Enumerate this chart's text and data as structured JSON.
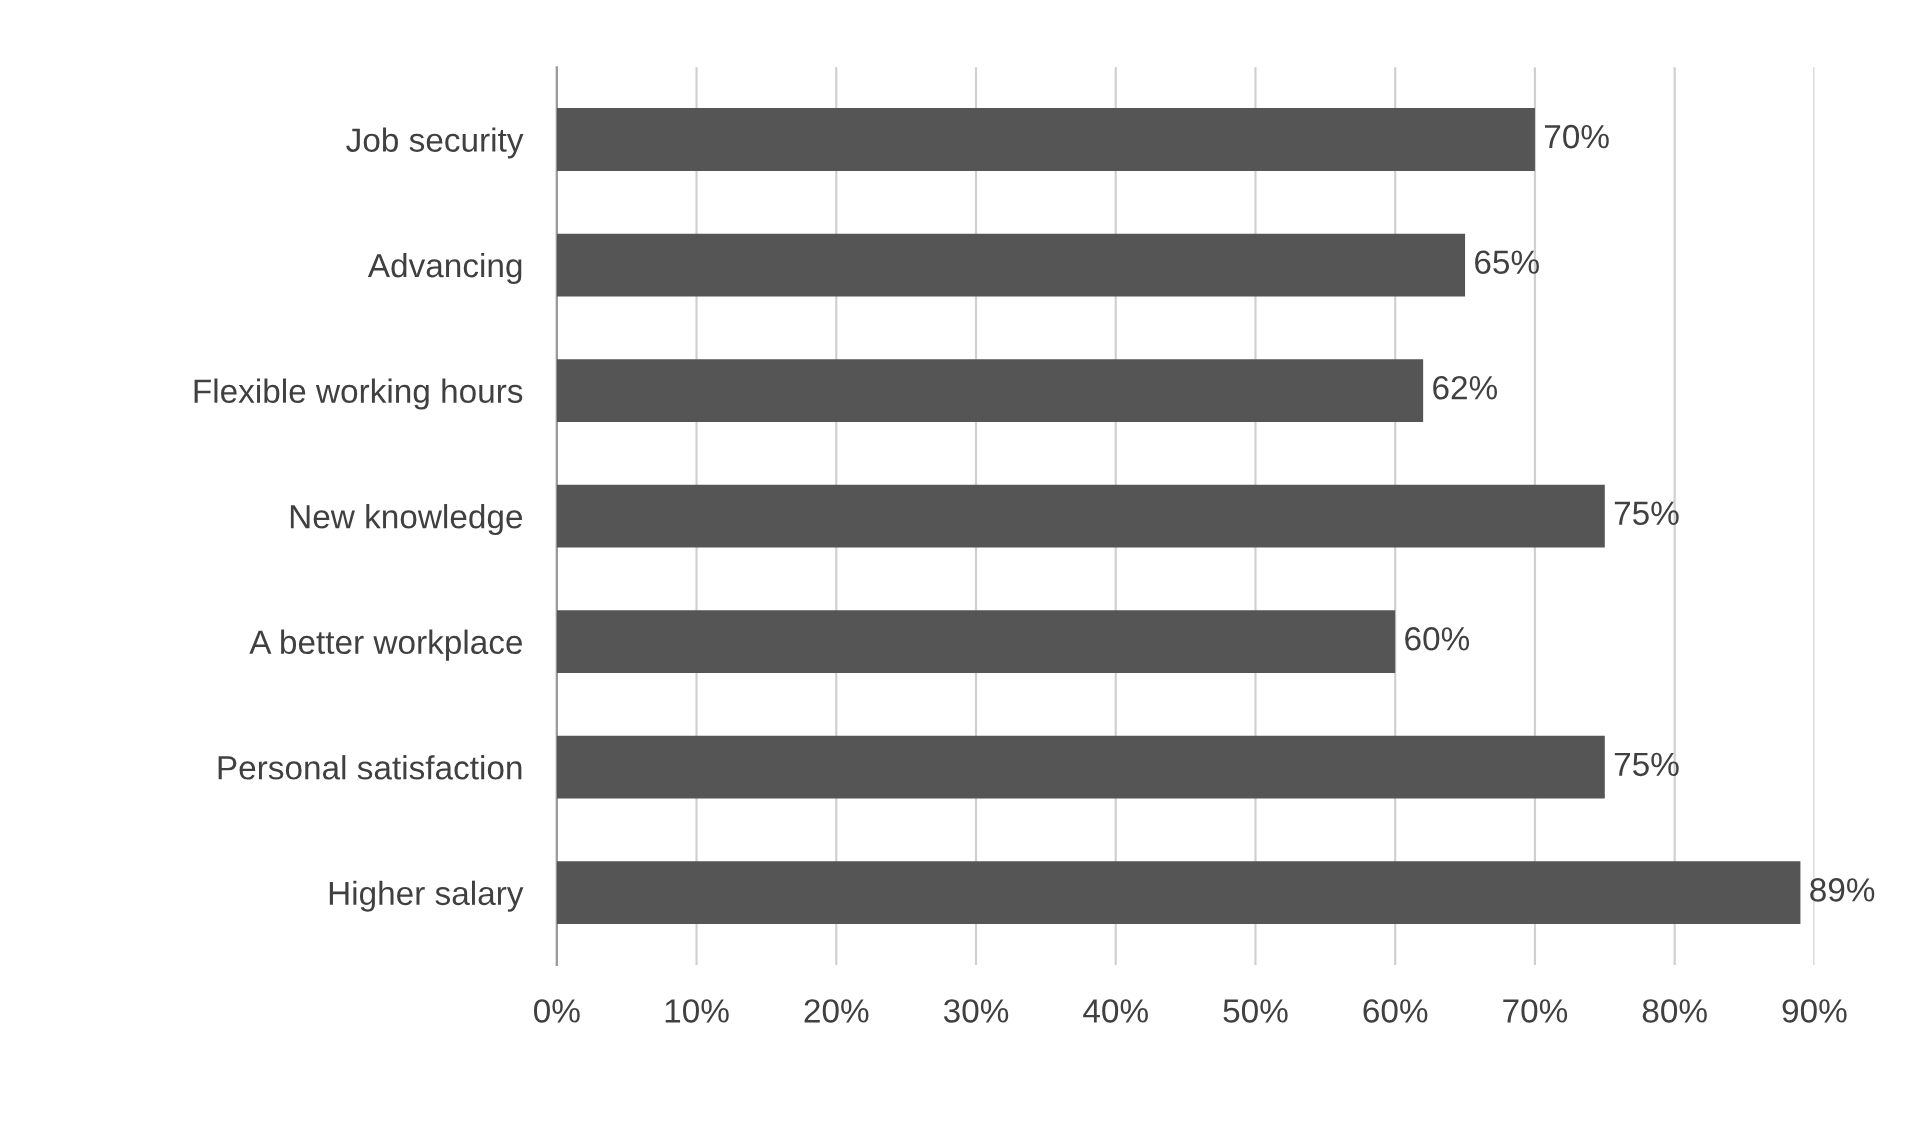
{
  "chart_data": {
    "type": "bar",
    "orientation": "horizontal",
    "categories": [
      "Job security",
      "Advancing",
      "Flexible working hours",
      "New knowledge",
      "A better workplace",
      "Personal satisfaction",
      "Higher salary"
    ],
    "values": [
      70,
      65,
      62,
      75,
      60,
      75,
      89
    ],
    "value_labels": [
      "70%",
      "65%",
      "62%",
      "75%",
      "60%",
      "75%",
      "89%"
    ],
    "color": "#555555",
    "xlim": [
      0,
      90
    ],
    "xticks": [
      {
        "value": 0,
        "label": "0%"
      },
      {
        "value": 10,
        "label": "10%"
      },
      {
        "value": 20,
        "label": "20%"
      },
      {
        "value": 30,
        "label": "30%"
      },
      {
        "value": 40,
        "label": "40%"
      },
      {
        "value": 50,
        "label": "50%"
      },
      {
        "value": 60,
        "label": "60%"
      },
      {
        "value": 70,
        "label": "70%"
      },
      {
        "value": 80,
        "label": "80%"
      },
      {
        "value": 90,
        "label": "90%"
      }
    ],
    "grid": "x",
    "legend": false
  }
}
